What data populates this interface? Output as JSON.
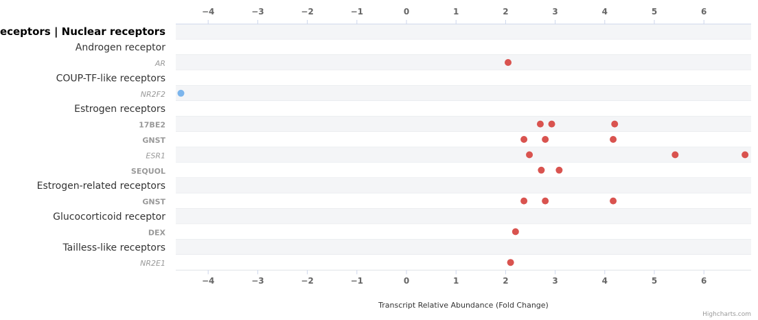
{
  "chart_data": {
    "type": "scatter",
    "xlabel": "Transcript Relative Abundance (Fold Change)",
    "xlim": [
      -4.6,
      6.9
    ],
    "xticks": [
      -4,
      -3,
      -2,
      -1,
      0,
      1,
      2,
      3,
      4,
      5,
      6
    ],
    "xtick_labels": [
      "−4",
      "−3",
      "−2",
      "−1",
      "0",
      "1",
      "2",
      "3",
      "4",
      "5",
      "6"
    ],
    "grid": true,
    "colors": {
      "up": "#d9534f",
      "down": "#7cb5ec"
    },
    "categories": [
      {
        "label": "Receptors | Nuclear receptors",
        "kind": "header",
        "points": []
      },
      {
        "label": "Androgen receptor",
        "kind": "group",
        "points": []
      },
      {
        "label": "AR",
        "kind": "gene",
        "points": [
          2.05
        ]
      },
      {
        "label": "COUP-TF-like receptors",
        "kind": "group",
        "points": []
      },
      {
        "label": "NR2F2",
        "kind": "gene",
        "points": [
          -4.55
        ]
      },
      {
        "label": "Estrogen receptors",
        "kind": "group",
        "points": []
      },
      {
        "label": "17BE2",
        "kind": "treatment",
        "points": [
          2.7,
          2.93,
          4.2
        ]
      },
      {
        "label": "GNST",
        "kind": "treatment",
        "points": [
          2.37,
          2.8,
          4.17
        ]
      },
      {
        "label": "ESR1",
        "kind": "gene",
        "points": [
          2.48,
          5.42,
          6.83
        ]
      },
      {
        "label": "SEQUOL",
        "kind": "treatment",
        "points": [
          2.72,
          3.08
        ]
      },
      {
        "label": "Estrogen-related receptors",
        "kind": "group",
        "points": []
      },
      {
        "label": "GNST",
        "kind": "treatment",
        "points": [
          2.37,
          2.8,
          4.17
        ]
      },
      {
        "label": "Glucocorticoid receptor",
        "kind": "group",
        "points": []
      },
      {
        "label": "DEX",
        "kind": "treatment",
        "points": [
          2.2
        ]
      },
      {
        "label": "Tailless-like receptors",
        "kind": "group",
        "points": []
      },
      {
        "label": "NR2E1",
        "kind": "gene",
        "points": [
          2.1
        ]
      }
    ]
  },
  "credits": "Highcharts.com"
}
